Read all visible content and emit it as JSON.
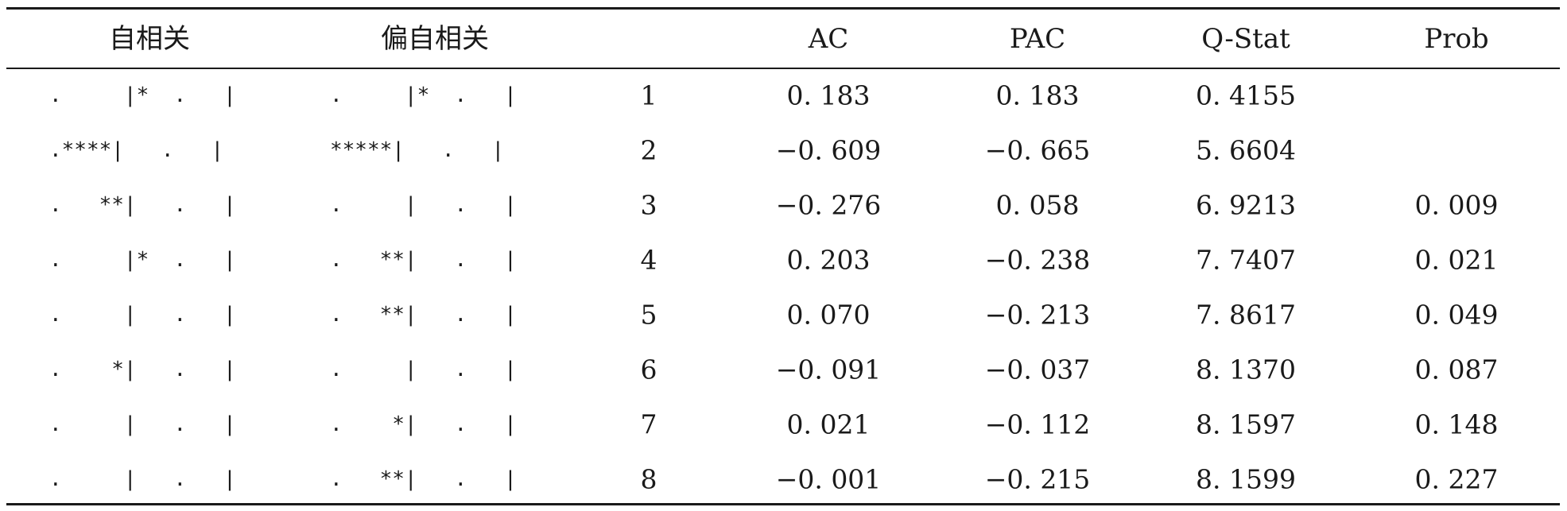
{
  "table": {
    "headers": [
      "自相关",
      "偏自相关",
      "",
      "AC",
      "PAC",
      "Q-Stat",
      "Prob"
    ],
    "rows": [
      {
        "ac_graph": ".     |*  .   |",
        "pac_graph": ".     |*  .   |",
        "lag": "1",
        "ac": "0. 183",
        "pac": "0. 183",
        "qstat": "0. 4155",
        "prob": ""
      },
      {
        "ac_graph": ".****|   .   |",
        "pac_graph": "*****|   .   |",
        "lag": "2",
        "ac": "−0. 609",
        "pac": "−0. 665",
        "qstat": "5. 6604",
        "prob": ""
      },
      {
        "ac_graph": ".   **|   .   |",
        "pac_graph": ".     |   .   |",
        "lag": "3",
        "ac": "−0. 276",
        "pac": "0. 058",
        "qstat": "6. 9213",
        "prob": "0. 009"
      },
      {
        "ac_graph": ".     |*  .   |",
        "pac_graph": ".   **|   .   |",
        "lag": "4",
        "ac": "0. 203",
        "pac": "−0. 238",
        "qstat": "7. 7407",
        "prob": "0. 021"
      },
      {
        "ac_graph": ".     |   .   |",
        "pac_graph": ".   **|   .   |",
        "lag": "5",
        "ac": "0. 070",
        "pac": "−0. 213",
        "qstat": "7. 8617",
        "prob": "0. 049"
      },
      {
        "ac_graph": ".    *|   .   |",
        "pac_graph": ".     |   .   |",
        "lag": "6",
        "ac": "−0. 091",
        "pac": "−0. 037",
        "qstat": "8. 1370",
        "prob": "0. 087"
      },
      {
        "ac_graph": ".     |   .   |",
        "pac_graph": ".    *|   .   |",
        "lag": "7",
        "ac": "0. 021",
        "pac": "−0. 112",
        "qstat": "8. 1597",
        "prob": "0. 148"
      },
      {
        "ac_graph": ".     |   .   |",
        "pac_graph": ".   **|   .   |",
        "lag": "8",
        "ac": "−0. 001",
        "pac": "−0. 215",
        "qstat": "8. 1599",
        "prob": "0. 227"
      }
    ]
  }
}
